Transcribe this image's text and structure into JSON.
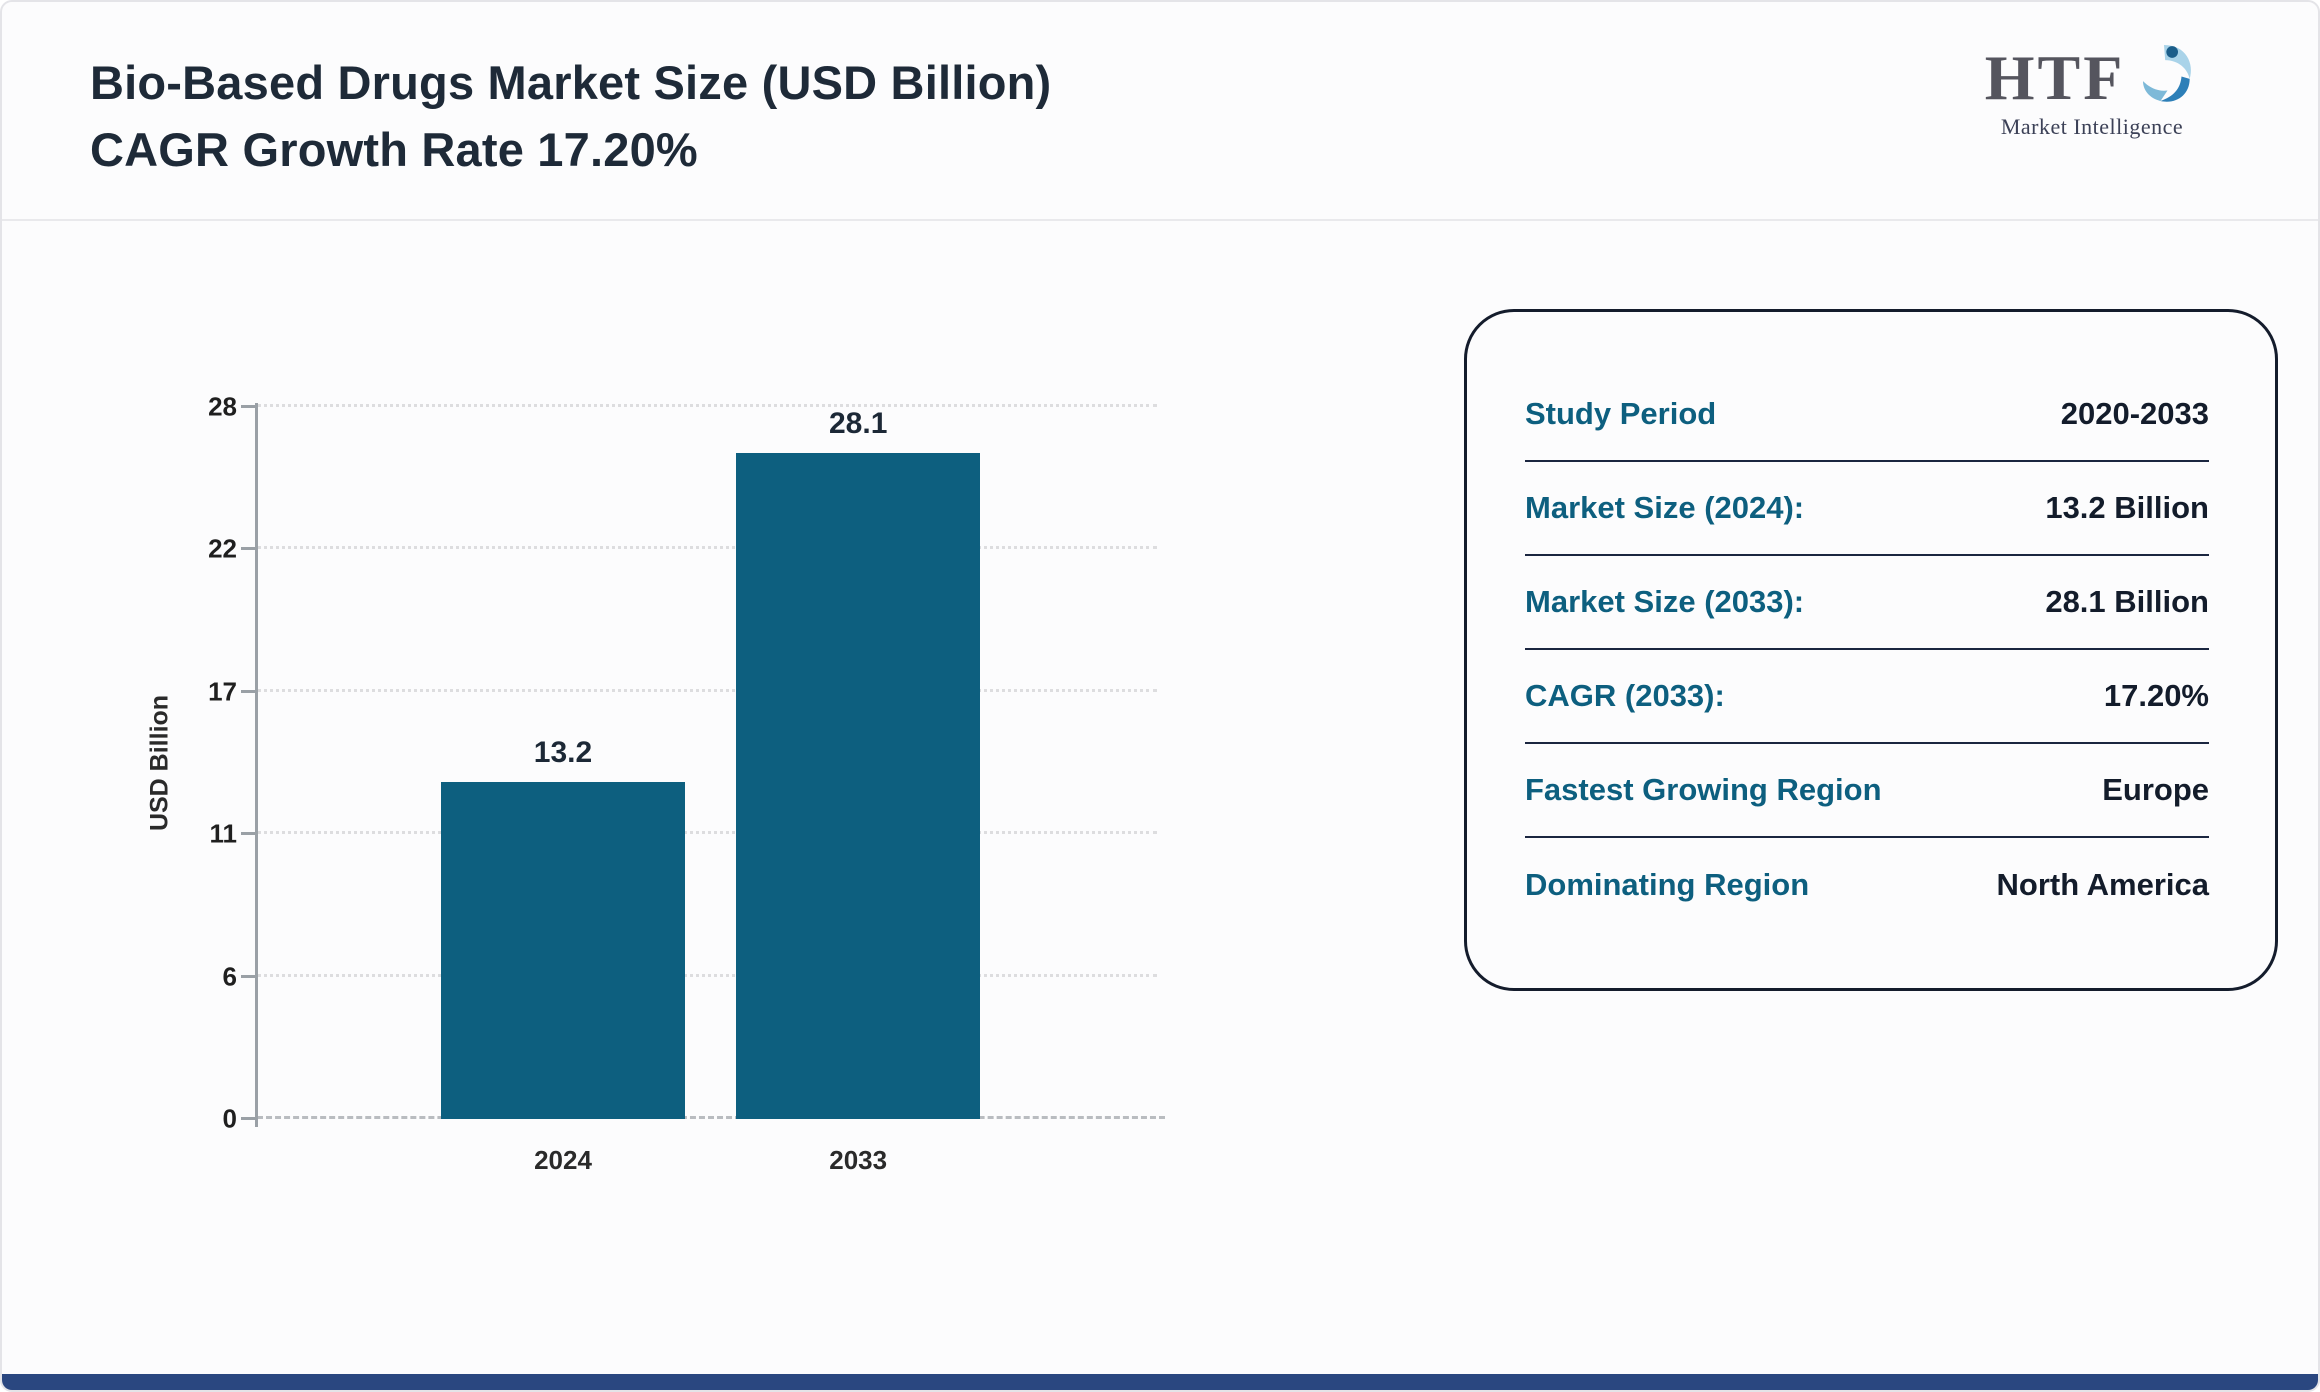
{
  "header": {
    "title_line1": "Bio-Based Drugs Market Size (USD Billion)",
    "title_line2": "CAGR Growth Rate 17.20%"
  },
  "logo": {
    "name": "HTF",
    "tagline": "Market Intelligence"
  },
  "chart_data": {
    "type": "bar",
    "title": "Bio-Based Drugs Market Size (USD Billion) CAGR Growth Rate 17.20%",
    "categories": [
      "2024",
      "2033"
    ],
    "values": [
      13.2,
      28.1
    ],
    "data_labels": [
      "13.2",
      "28.1"
    ],
    "xlabel": "",
    "ylabel": "USD Billion",
    "yticks": [
      0,
      6,
      11,
      17,
      22,
      28
    ],
    "ylim": [
      0,
      28
    ],
    "grid": true,
    "legend": false,
    "bar_color": "#0d5f7f"
  },
  "info_card": {
    "rows": [
      {
        "label": "Study Period",
        "value": "2020-2033"
      },
      {
        "label": "Market Size (2024):",
        "value": "13.2 Billion"
      },
      {
        "label": "Market Size (2033):",
        "value": "28.1 Billion"
      },
      {
        "label": "CAGR (2033):",
        "value": "17.20%"
      },
      {
        "label": "Fastest Growing Region",
        "value": "Europe"
      },
      {
        "label": "Dominating Region",
        "value": "North America"
      }
    ]
  },
  "colors": {
    "bar": "#0d5f7f",
    "card_label": "#0d5f7f",
    "title_text": "#1e2a38",
    "value_text": "#131c2b",
    "bottom_strip": "#2a4780"
  }
}
